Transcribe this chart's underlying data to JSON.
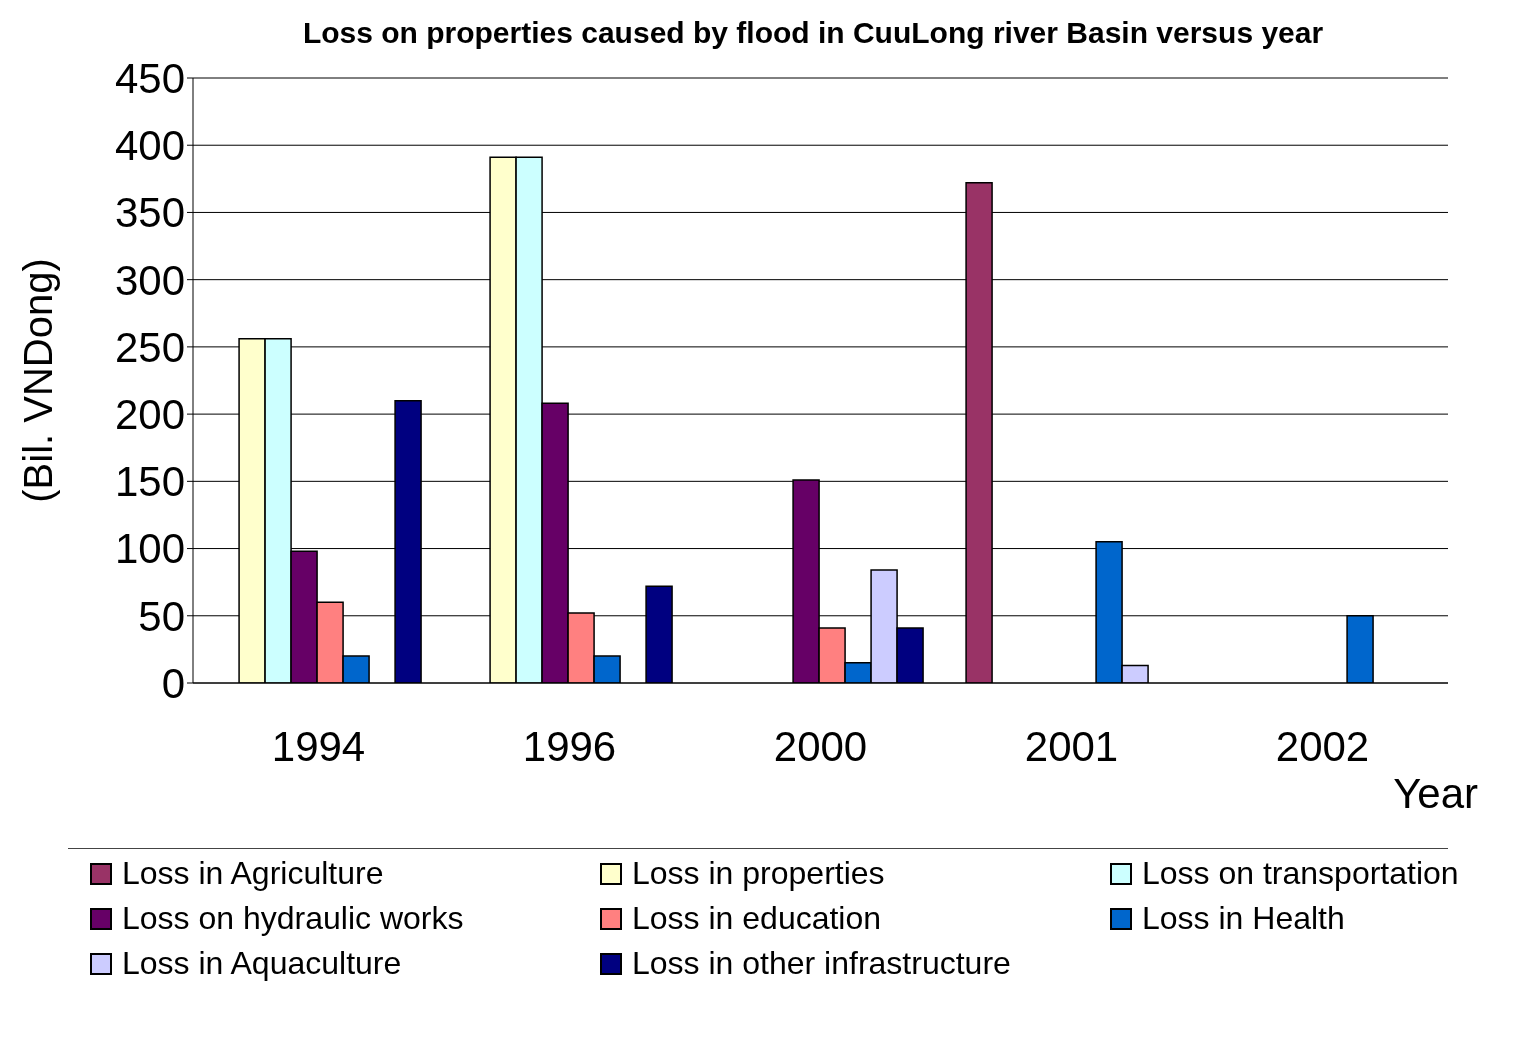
{
  "chart_data": {
    "type": "bar",
    "title": "Loss on properties caused by flood in CuuLong river Basin versus year",
    "xlabel": "Year",
    "ylabel": "(Bil. VNDong)",
    "categories": [
      "1994",
      "1996",
      "2000",
      "2001",
      "2002"
    ],
    "series": [
      {
        "name": "Loss in Agriculture",
        "color": "#993366",
        "values": [
          null,
          null,
          null,
          372,
          null
        ]
      },
      {
        "name": "Loss in properties",
        "color": "#ffffcc",
        "values": [
          256,
          391,
          null,
          null,
          null
        ]
      },
      {
        "name": "Loss on transportation",
        "color": "#ccffff",
        "values": [
          256,
          391,
          null,
          null,
          null
        ]
      },
      {
        "name": "Loss on hydraulic works",
        "color": "#660066",
        "values": [
          98,
          208,
          151,
          null,
          null
        ]
      },
      {
        "name": "Loss in education",
        "color": "#ff8080",
        "values": [
          60,
          52,
          41,
          null,
          null
        ]
      },
      {
        "name": "Loss in Health",
        "color": "#0066cc",
        "values": [
          20,
          20,
          15,
          105,
          50
        ]
      },
      {
        "name": "Loss in Aquaculture",
        "color": "#ccccff",
        "values": [
          null,
          null,
          84,
          13,
          null
        ]
      },
      {
        "name": "Loss in other infrastructure",
        "color": "#000080",
        "values": [
          210,
          72,
          41,
          null,
          null
        ]
      }
    ],
    "ylim": [
      0,
      450
    ],
    "yticks": [
      0,
      50,
      100,
      150,
      200,
      250,
      300,
      350,
      400,
      450
    ],
    "grid": "y",
    "legend": "bottom"
  }
}
